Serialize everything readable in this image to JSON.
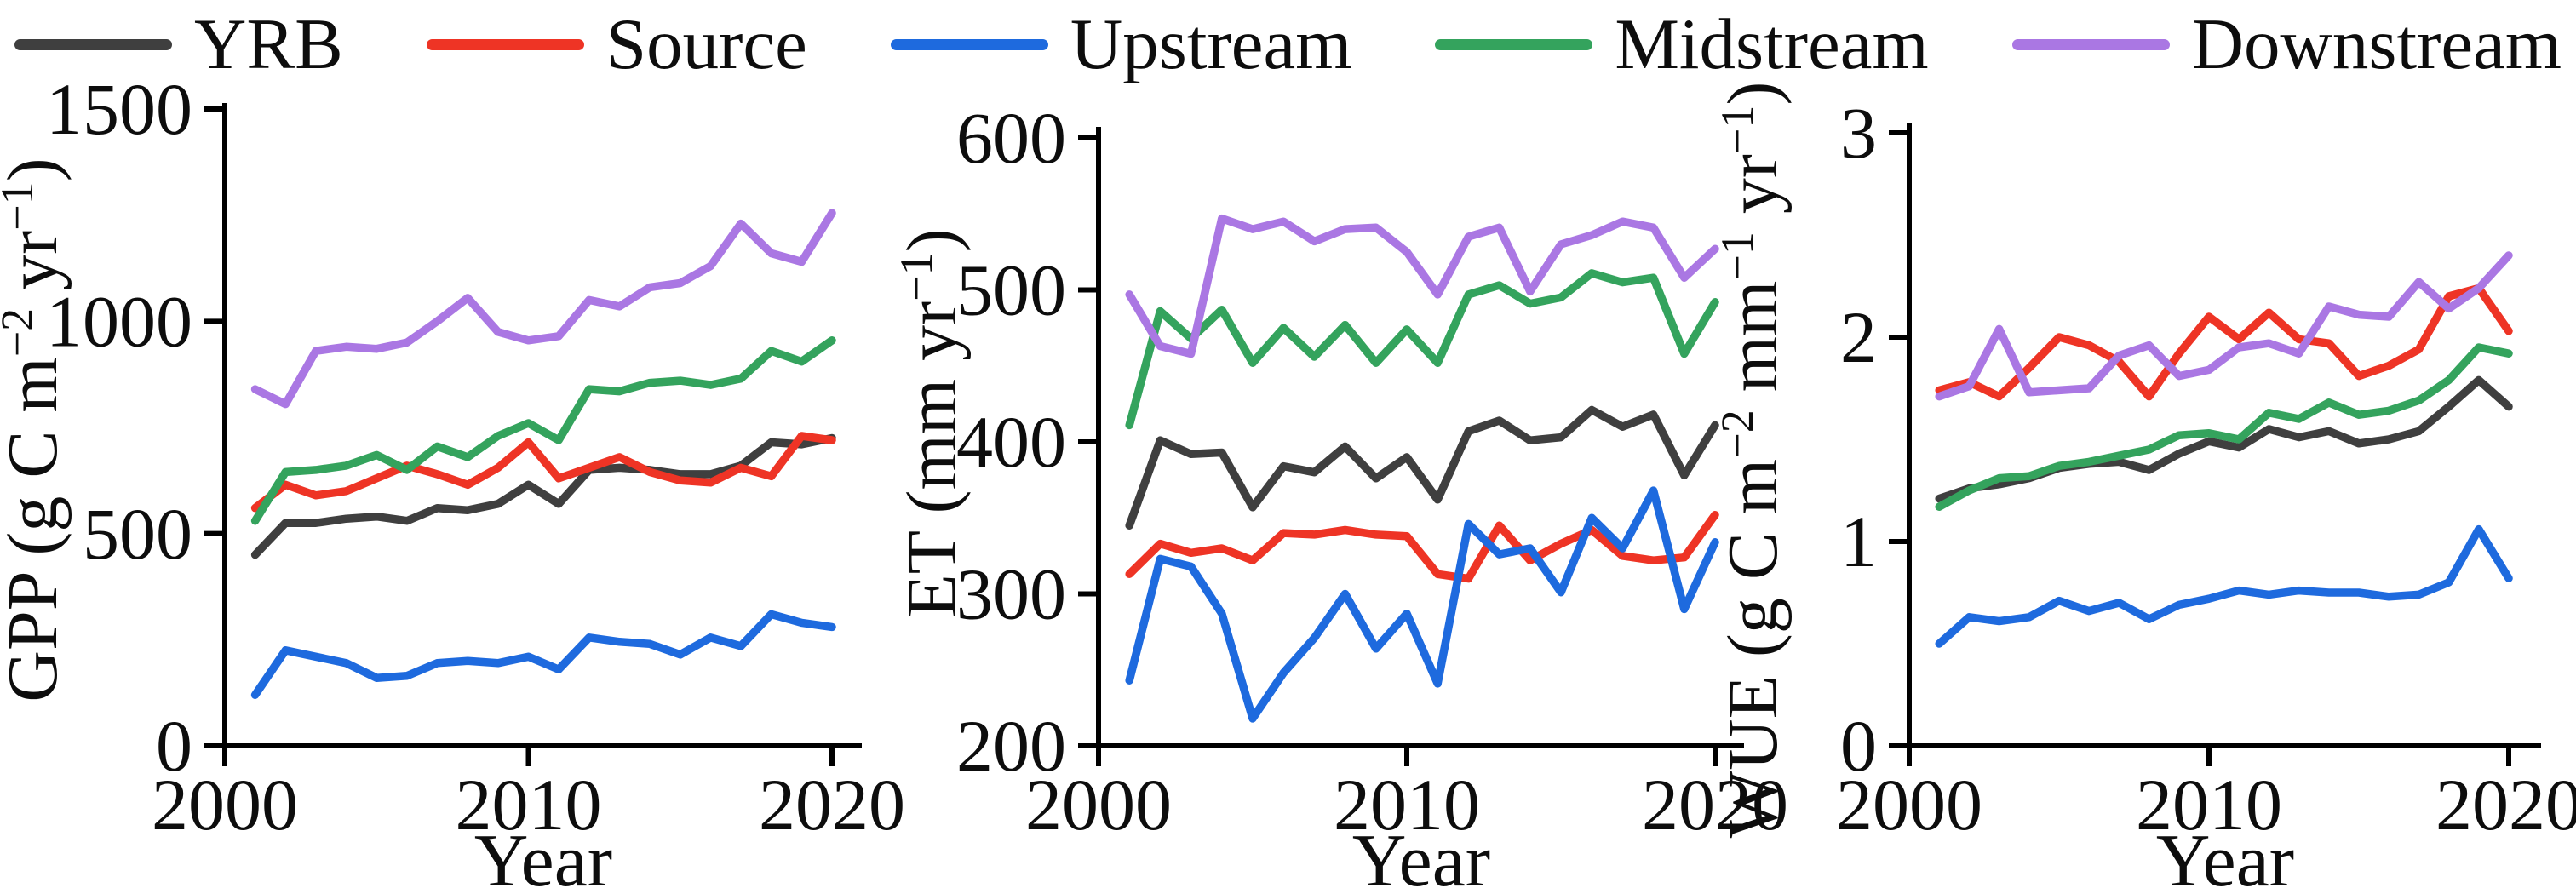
{
  "figure": {
    "background": "#ffffff",
    "axis_color": "#000000",
    "legend": {
      "position": "top",
      "items": [
        {
          "label": "YRB",
          "color": "#3f3f3f"
        },
        {
          "label": "Source",
          "color": "#ee3425"
        },
        {
          "label": "Upstream",
          "color": "#1e6ade"
        },
        {
          "label": "Midstream",
          "color": "#34a35d"
        },
        {
          "label": "Downstream",
          "color": "#aa77e3"
        }
      ]
    }
  },
  "chart_data": [
    {
      "type": "line",
      "title": "",
      "ylabel": "GPP (g C m^{−2} yr^{−1})",
      "xlabel": "Year",
      "x": [
        2001,
        2002,
        2003,
        2004,
        2005,
        2006,
        2007,
        2008,
        2009,
        2010,
        2011,
        2012,
        2013,
        2014,
        2015,
        2016,
        2017,
        2018,
        2019,
        2020
      ],
      "xlim": [
        2000,
        2021
      ],
      "ylim": [
        0,
        1500
      ],
      "xticks": [
        2000,
        2010,
        2020
      ],
      "yticks": [
        0,
        500,
        1000,
        1500
      ],
      "grid": false,
      "series": [
        {
          "name": "YRB",
          "color": "#3f3f3f",
          "values": [
            450,
            525,
            525,
            535,
            540,
            530,
            560,
            555,
            570,
            615,
            570,
            650,
            655,
            650,
            640,
            640,
            660,
            715,
            710,
            725
          ]
        },
        {
          "name": "Source",
          "color": "#ee3425",
          "values": [
            560,
            615,
            590,
            600,
            630,
            660,
            640,
            615,
            655,
            715,
            630,
            655,
            680,
            645,
            625,
            620,
            655,
            635,
            730,
            720
          ]
        },
        {
          "name": "Upstream",
          "color": "#1e6ade",
          "values": [
            120,
            225,
            210,
            195,
            160,
            165,
            195,
            200,
            195,
            210,
            180,
            255,
            245,
            240,
            215,
            255,
            235,
            310,
            290,
            280
          ]
        },
        {
          "name": "Midstream",
          "color": "#34a35d",
          "values": [
            530,
            645,
            650,
            660,
            685,
            650,
            705,
            680,
            730,
            760,
            720,
            840,
            835,
            855,
            860,
            850,
            865,
            930,
            905,
            955
          ]
        },
        {
          "name": "Downstream",
          "color": "#aa77e3",
          "values": [
            840,
            805,
            930,
            940,
            935,
            950,
            1000,
            1055,
            975,
            955,
            965,
            1050,
            1035,
            1080,
            1090,
            1130,
            1230,
            1160,
            1140,
            1255
          ]
        }
      ]
    },
    {
      "type": "line",
      "title": "",
      "ylabel": "ET (mm yr^{−1})",
      "xlabel": "Year",
      "x": [
        2001,
        2002,
        2003,
        2004,
        2005,
        2006,
        2007,
        2008,
        2009,
        2010,
        2011,
        2012,
        2013,
        2014,
        2015,
        2016,
        2017,
        2018,
        2019,
        2020
      ],
      "xlim": [
        2000,
        2021
      ],
      "ylim": [
        200,
        600
      ],
      "xticks": [
        2000,
        2010,
        2020
      ],
      "yticks": [
        200,
        300,
        400,
        500,
        600
      ],
      "grid": false,
      "series": [
        {
          "name": "YRB",
          "color": "#3f3f3f",
          "values": [
            345,
            401,
            392,
            393,
            357,
            384,
            380,
            397,
            376,
            390,
            362,
            407,
            414,
            401,
            403,
            421,
            410,
            418,
            378,
            411
          ]
        },
        {
          "name": "Source",
          "color": "#ee3425",
          "values": [
            313,
            333,
            327,
            330,
            322,
            340,
            339,
            342,
            339,
            338,
            313,
            310,
            345,
            322,
            333,
            342,
            325,
            322,
            324,
            352
          ]
        },
        {
          "name": "Upstream",
          "color": "#1e6ade",
          "values": [
            243,
            323,
            318,
            287,
            218,
            248,
            271,
            300,
            264,
            287,
            241,
            346,
            326,
            330,
            301,
            350,
            330,
            368,
            290,
            334
          ]
        },
        {
          "name": "Midstream",
          "color": "#34a35d",
          "values": [
            411,
            486,
            468,
            487,
            452,
            475,
            456,
            477,
            452,
            474,
            452,
            497,
            503,
            491,
            495,
            511,
            505,
            508,
            458,
            492
          ]
        },
        {
          "name": "Downstream",
          "color": "#aa77e3",
          "values": [
            497,
            463,
            458,
            547,
            540,
            545,
            532,
            540,
            541,
            525,
            497,
            535,
            541,
            499,
            530,
            536,
            545,
            541,
            508,
            527
          ]
        }
      ]
    },
    {
      "type": "line",
      "title": "",
      "ylabel": "WUE (g C m^{−2} mm^{−1} yr^{−1})",
      "xlabel": "Year",
      "x": [
        2001,
        2002,
        2003,
        2004,
        2005,
        2006,
        2007,
        2008,
        2009,
        2010,
        2011,
        2012,
        2013,
        2014,
        2015,
        2016,
        2017,
        2018,
        2019,
        2020
      ],
      "xlim": [
        2000,
        2021
      ],
      "ylim": [
        0,
        3
      ],
      "xticks": [
        2000,
        2010,
        2020
      ],
      "yticks": [
        0,
        1,
        2,
        3
      ],
      "grid": false,
      "series": [
        {
          "name": "YRB",
          "color": "#3f3f3f",
          "values": [
            1.21,
            1.26,
            1.28,
            1.31,
            1.36,
            1.38,
            1.39,
            1.35,
            1.43,
            1.49,
            1.46,
            1.55,
            1.51,
            1.54,
            1.48,
            1.5,
            1.54,
            1.66,
            1.79,
            1.66
          ]
        },
        {
          "name": "Source",
          "color": "#ee3425",
          "values": [
            1.74,
            1.78,
            1.71,
            1.85,
            2.0,
            1.96,
            1.88,
            1.71,
            1.92,
            2.1,
            1.99,
            2.12,
            1.99,
            1.97,
            1.81,
            1.86,
            1.94,
            2.2,
            2.24,
            2.03
          ]
        },
        {
          "name": "Upstream",
          "color": "#1e6ade",
          "values": [
            0.5,
            0.63,
            0.61,
            0.63,
            0.71,
            0.66,
            0.7,
            0.62,
            0.69,
            0.72,
            0.76,
            0.74,
            0.76,
            0.75,
            0.75,
            0.73,
            0.74,
            0.8,
            1.06,
            0.82
          ]
        },
        {
          "name": "Midstream",
          "color": "#34a35d",
          "values": [
            1.17,
            1.25,
            1.31,
            1.32,
            1.37,
            1.39,
            1.42,
            1.45,
            1.52,
            1.53,
            1.5,
            1.63,
            1.6,
            1.68,
            1.62,
            1.64,
            1.69,
            1.79,
            1.95,
            1.92
          ]
        },
        {
          "name": "Downstream",
          "color": "#aa77e3",
          "values": [
            1.71,
            1.76,
            2.04,
            1.73,
            1.74,
            1.75,
            1.91,
            1.96,
            1.81,
            1.84,
            1.95,
            1.97,
            1.92,
            2.15,
            2.11,
            2.1,
            2.27,
            2.14,
            2.24,
            2.4
          ]
        }
      ]
    }
  ]
}
